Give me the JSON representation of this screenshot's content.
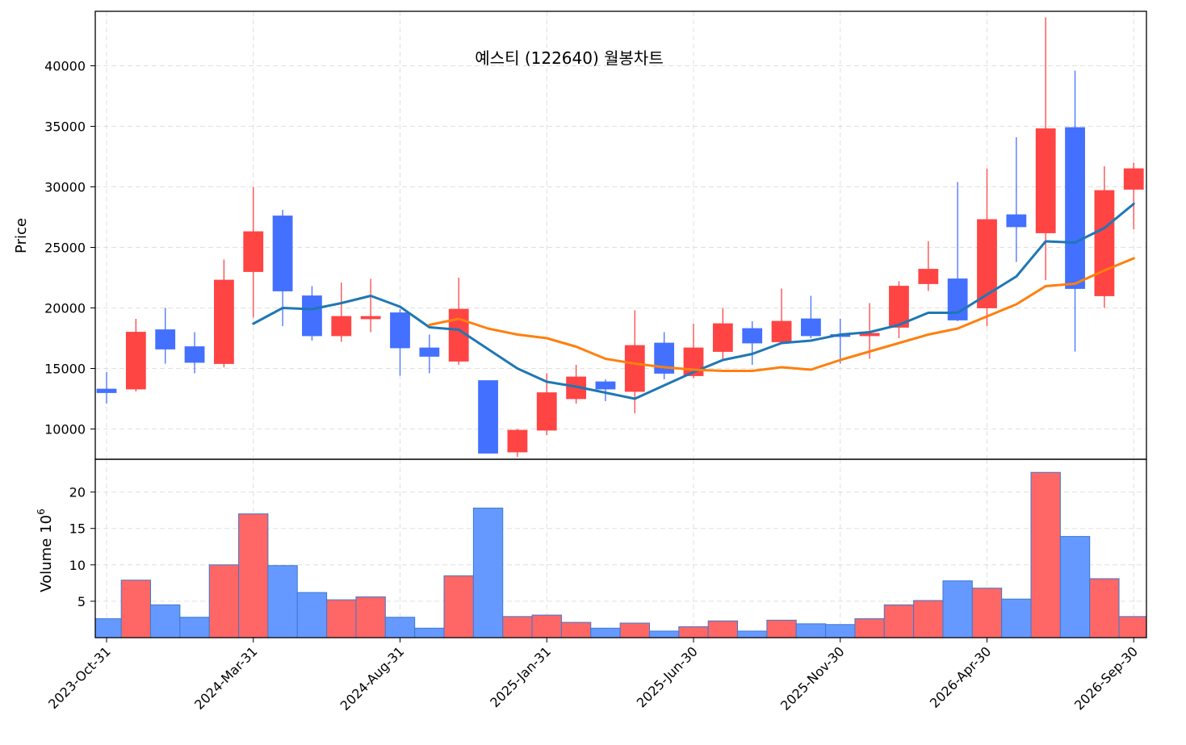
{
  "chart_data": {
    "type": "candlestick",
    "title": "예스티 (122640) 월봉차트",
    "ylabel": "Price",
    "volume_label": "Volume",
    "volume_exponent_label": "10",
    "volume_exponent_sup": "6",
    "ylim": [
      7500,
      44500
    ],
    "volume_ylim": [
      0,
      24.5
    ],
    "y_ticks": [
      10000,
      15000,
      20000,
      25000,
      30000,
      35000,
      40000
    ],
    "volume_ticks": [
      5,
      10,
      15,
      20
    ],
    "x_tick_labels": [
      {
        "index": 0,
        "label": "2023-Oct-31"
      },
      {
        "index": 5,
        "label": "2024-Mar-31"
      },
      {
        "index": 10,
        "label": "2024-Aug-31"
      },
      {
        "index": 15,
        "label": "2025-Jan-31"
      },
      {
        "index": 20,
        "label": "2025-Jun-30"
      },
      {
        "index": 25,
        "label": "2025-Nov-30"
      },
      {
        "index": 30,
        "label": "2026-Apr-30"
      },
      {
        "index": 35,
        "label": "2026-Sep-30"
      }
    ],
    "up_color": "#ff4444",
    "down_color": "#4470ff",
    "volume_up_color": "#ff6666",
    "volume_down_color": "#6699ff",
    "volume_edge_color": "#3a7ad0",
    "ma_colors": [
      "#1f77b4",
      "#ff7f0e"
    ],
    "grid": true,
    "candles": [
      {
        "o": 13300,
        "h": 14700,
        "l": 12100,
        "c": 13000,
        "v": 2.6
      },
      {
        "o": 13300,
        "h": 19100,
        "l": 13100,
        "c": 18000,
        "v": 7.9
      },
      {
        "o": 18200,
        "h": 20000,
        "l": 15400,
        "c": 16600,
        "v": 4.5
      },
      {
        "o": 16800,
        "h": 18000,
        "l": 14600,
        "c": 15500,
        "v": 2.8
      },
      {
        "o": 15400,
        "h": 24000,
        "l": 15100,
        "c": 22300,
        "v": 10.0
      },
      {
        "o": 23000,
        "h": 30000,
        "l": 19200,
        "c": 26300,
        "v": 17.0
      },
      {
        "o": 27600,
        "h": 28100,
        "l": 18500,
        "c": 21400,
        "v": 9.9
      },
      {
        "o": 21000,
        "h": 21800,
        "l": 17300,
        "c": 17700,
        "v": 6.2
      },
      {
        "o": 17700,
        "h": 22100,
        "l": 17200,
        "c": 19300,
        "v": 5.2
      },
      {
        "o": 19100,
        "h": 22400,
        "l": 18000,
        "c": 19300,
        "v": 5.6
      },
      {
        "o": 19600,
        "h": 19900,
        "l": 14400,
        "c": 16700,
        "v": 2.8
      },
      {
        "o": 16700,
        "h": 17800,
        "l": 14600,
        "c": 16000,
        "v": 1.3
      },
      {
        "o": 15600,
        "h": 22500,
        "l": 15300,
        "c": 19900,
        "v": 8.5
      },
      {
        "o": 14000,
        "h": 14000,
        "l": 8000,
        "c": 8000,
        "v": 17.8
      },
      {
        "o": 8100,
        "h": 10000,
        "l": 7700,
        "c": 9900,
        "v": 2.9
      },
      {
        "o": 9900,
        "h": 14600,
        "l": 9500,
        "c": 13000,
        "v": 3.1
      },
      {
        "o": 12500,
        "h": 15300,
        "l": 12100,
        "c": 14300,
        "v": 2.1
      },
      {
        "o": 13900,
        "h": 14100,
        "l": 12300,
        "c": 13300,
        "v": 1.3
      },
      {
        "o": 13100,
        "h": 19800,
        "l": 11300,
        "c": 16900,
        "v": 2.0
      },
      {
        "o": 17100,
        "h": 18000,
        "l": 14100,
        "c": 14600,
        "v": 0.9
      },
      {
        "o": 14400,
        "h": 18700,
        "l": 14200,
        "c": 16700,
        "v": 1.5
      },
      {
        "o": 16400,
        "h": 20000,
        "l": 15800,
        "c": 18700,
        "v": 2.3
      },
      {
        "o": 18300,
        "h": 18900,
        "l": 15300,
        "c": 17100,
        "v": 0.9
      },
      {
        "o": 17200,
        "h": 21600,
        "l": 17000,
        "c": 18900,
        "v": 2.4
      },
      {
        "o": 19100,
        "h": 21000,
        "l": 17500,
        "c": 17700,
        "v": 1.9
      },
      {
        "o": 17800,
        "h": 19100,
        "l": 15400,
        "c": 17700,
        "v": 1.8
      },
      {
        "o": 17700,
        "h": 20400,
        "l": 15800,
        "c": 17900,
        "v": 2.6
      },
      {
        "o": 18400,
        "h": 22200,
        "l": 17500,
        "c": 21800,
        "v": 4.5
      },
      {
        "o": 22000,
        "h": 25500,
        "l": 21400,
        "c": 23200,
        "v": 5.1
      },
      {
        "o": 22400,
        "h": 30400,
        "l": 18900,
        "c": 19000,
        "v": 7.8
      },
      {
        "o": 20000,
        "h": 31500,
        "l": 18500,
        "c": 27300,
        "v": 6.8
      },
      {
        "o": 27700,
        "h": 34100,
        "l": 23800,
        "c": 26700,
        "v": 5.3
      },
      {
        "o": 26200,
        "h": 44000,
        "l": 22300,
        "c": 34800,
        "v": 22.7
      },
      {
        "o": 34900,
        "h": 39600,
        "l": 16400,
        "c": 21600,
        "v": 13.9
      },
      {
        "o": 21000,
        "h": 31700,
        "l": 20000,
        "c": 29700,
        "v": 8.1
      },
      {
        "o": 29800,
        "h": 32000,
        "l": 26500,
        "c": 31500,
        "v": 2.9
      }
    ],
    "series": [
      {
        "start": 5,
        "values": [
          18700,
          20000,
          19900,
          20400,
          21000,
          20100,
          18400,
          18200,
          16600,
          15000,
          13900,
          13500,
          13000,
          12500,
          13600,
          14700,
          15700,
          16200,
          17100,
          17300,
          17800,
          18000,
          18600,
          19600,
          19600,
          21100,
          22600,
          25500,
          25400,
          26600,
          28600
        ]
      },
      {
        "start": 11,
        "values": [
          18600,
          19100,
          18300,
          17800,
          17500,
          16800,
          15800,
          15400,
          15100,
          14900,
          14800,
          14800,
          15100,
          14900,
          15700,
          16400,
          17100,
          17800,
          18300,
          19300,
          20300,
          21800,
          22000,
          23100,
          24100
        ]
      }
    ]
  }
}
